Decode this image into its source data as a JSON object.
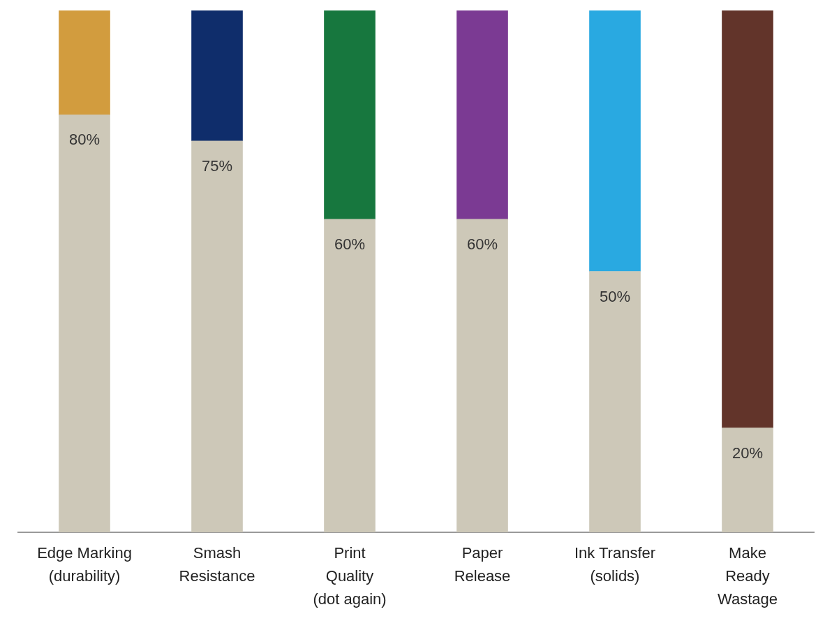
{
  "chart_data": {
    "type": "bar",
    "stacked": true,
    "categories": [
      "Edge Marking\n(durability)",
      "Smash\nResistance",
      "Print\nQuality\n(dot again)",
      "Paper\nRelease",
      "Ink Transfer\n(solids)",
      "Make\nReady\nWastage"
    ],
    "series": [
      {
        "color": "#cdc8b8",
        "values": [
          80,
          75,
          60,
          60,
          50,
          20
        ],
        "value_labels": [
          "80%",
          "75%",
          "60%",
          "60%",
          "50%",
          "20%"
        ]
      },
      {
        "colors": [
          "#d29c3e",
          "#0f2d6b",
          "#17773e",
          "#7b3a93",
          "#29a9e1",
          "#62342a"
        ],
        "values": [
          20,
          25,
          40,
          40,
          50,
          80
        ]
      }
    ],
    "ylim": [
      0,
      100
    ],
    "tick_labels": "x",
    "grid": false
  }
}
